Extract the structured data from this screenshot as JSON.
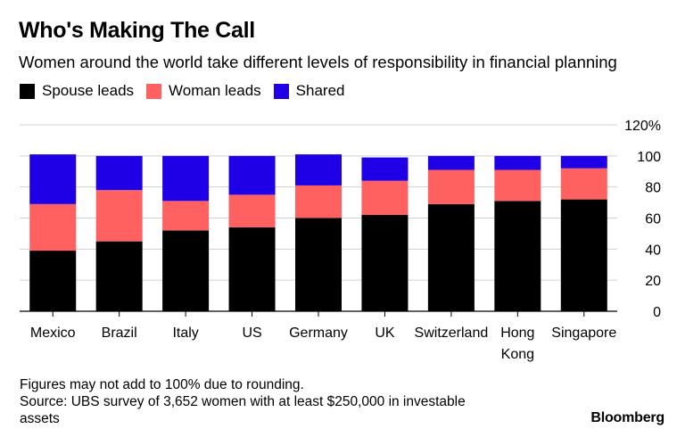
{
  "header": {
    "title": "Who's Making The Call",
    "subtitle": "Women around the world take different levels of responsibility in financial planning"
  },
  "footer": {
    "note": "Figures may not add to 100% due to rounding.",
    "source_line1": "Source: UBS survey of 3,652 women with at least $250,000 in investable",
    "source_line2": "assets",
    "brand": "Bloomberg"
  },
  "chart_data": {
    "type": "bar",
    "stacked": true,
    "categories": [
      "Mexico",
      "Brazil",
      "Italy",
      "US",
      "Germany",
      "UK",
      "Switzerland",
      "Hong Kong",
      "Singapore"
    ],
    "category_lines": [
      [
        "Mexico"
      ],
      [
        "Brazil"
      ],
      [
        "Italy"
      ],
      [
        "US"
      ],
      [
        "Germany"
      ],
      [
        "UK"
      ],
      [
        "Switzerland"
      ],
      [
        "Hong",
        "Kong"
      ],
      [
        "Singapore"
      ]
    ],
    "series": [
      {
        "name": "Spouse leads",
        "color": "#000000",
        "values": [
          39,
          45,
          52,
          54,
          60,
          62,
          69,
          71,
          72
        ]
      },
      {
        "name": "Woman leads",
        "color": "#ff6060",
        "values": [
          30,
          33,
          19,
          21,
          21,
          22,
          22,
          20,
          20
        ]
      },
      {
        "name": "Shared",
        "color": "#1f00e6",
        "values": [
          32,
          22,
          29,
          25,
          20,
          15,
          9,
          9,
          8
        ]
      }
    ],
    "ylim": [
      0,
      120
    ],
    "yticks": [
      0,
      20,
      40,
      60,
      80,
      100,
      120
    ],
    "ytick_labels": [
      "0",
      "20",
      "40",
      "60",
      "80",
      "100",
      "120%"
    ],
    "grid": true,
    "legend_position": "top-left",
    "yaxis_side": "right"
  }
}
